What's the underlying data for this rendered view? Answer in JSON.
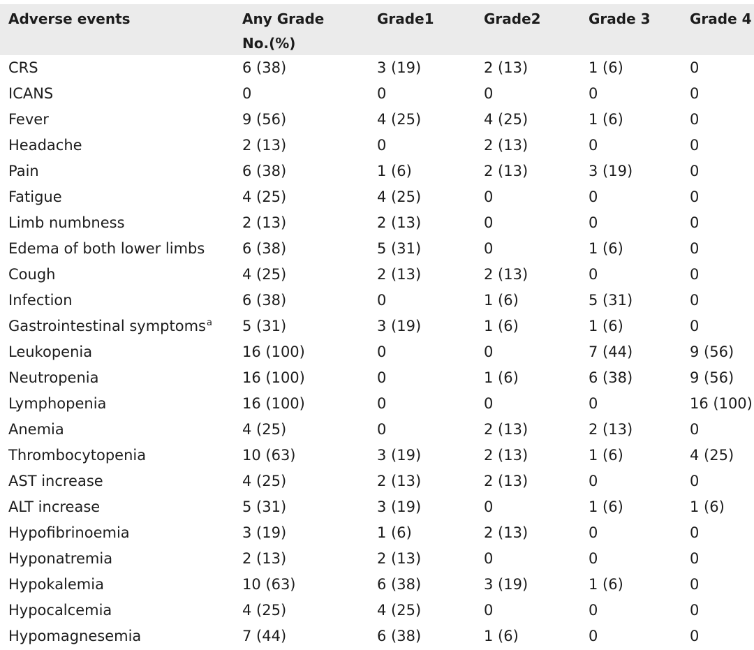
{
  "table": {
    "headers": [
      {
        "lines": [
          "Adverse events"
        ]
      },
      {
        "lines": [
          "Any Grade",
          "No.(%)"
        ]
      },
      {
        "lines": [
          "Grade1"
        ]
      },
      {
        "lines": [
          "Grade2"
        ]
      },
      {
        "lines": [
          "Grade 3"
        ]
      },
      {
        "lines": [
          "Grade 4"
        ]
      }
    ],
    "rows": [
      {
        "event": "CRS",
        "cells": [
          "6 (38)",
          "3 (19)",
          "2 (13)",
          "1 (6)",
          "0"
        ]
      },
      {
        "event": "ICANS",
        "cells": [
          "0",
          "0",
          "0",
          "0",
          "0"
        ]
      },
      {
        "event": "Fever",
        "cells": [
          "9 (56)",
          "4 (25)",
          "4 (25)",
          "1 (6)",
          "0"
        ]
      },
      {
        "event": "Headache",
        "cells": [
          "2 (13)",
          "0",
          "2 (13)",
          "0",
          "0"
        ]
      },
      {
        "event": "Pain",
        "cells": [
          "6 (38)",
          "1 (6)",
          "2 (13)",
          "3 (19)",
          "0"
        ]
      },
      {
        "event": "Fatigue",
        "cells": [
          "4 (25)",
          "4 (25)",
          "0",
          "0",
          "0"
        ]
      },
      {
        "event": "Limb numbness",
        "cells": [
          "2 (13)",
          "2 (13)",
          "0",
          "0",
          "0"
        ]
      },
      {
        "event": "Edema of both lower limbs",
        "cells": [
          "6 (38)",
          "5 (31)",
          "0",
          "1 (6)",
          "0"
        ]
      },
      {
        "event": "Cough",
        "cells": [
          "4 (25)",
          "2 (13)",
          "2 (13)",
          "0",
          "0"
        ]
      },
      {
        "event": "Infection",
        "cells": [
          "6 (38)",
          "0",
          "1 (6)",
          "5 (31)",
          "0"
        ]
      },
      {
        "event": "Gastrointestinal symptoms",
        "footnote": "a",
        "cells": [
          "5 (31)",
          "3 (19)",
          "1 (6)",
          "1 (6)",
          "0"
        ]
      },
      {
        "event": "Leukopenia",
        "cells": [
          "16 (100)",
          "0",
          "0",
          "7 (44)",
          "9 (56)"
        ]
      },
      {
        "event": "Neutropenia",
        "cells": [
          "16 (100)",
          "0",
          "1 (6)",
          "6 (38)",
          "9 (56)"
        ]
      },
      {
        "event": "Lymphopenia",
        "cells": [
          "16 (100)",
          "0",
          "0",
          "0",
          "16 (100)"
        ]
      },
      {
        "event": "Anemia",
        "cells": [
          "4 (25)",
          "0",
          "2 (13)",
          "2 (13)",
          "0"
        ]
      },
      {
        "event": "Thrombocytopenia",
        "cells": [
          "10 (63)",
          "3 (19)",
          "2 (13)",
          "1 (6)",
          "4 (25)"
        ]
      },
      {
        "event": "AST increase",
        "cells": [
          "4 (25)",
          "2 (13)",
          "2 (13)",
          "0",
          "0"
        ]
      },
      {
        "event": "ALT increase",
        "cells": [
          "5 (31)",
          "3 (19)",
          "0",
          "1 (6)",
          "1 (6)"
        ]
      },
      {
        "event": "Hypofibrinoemia",
        "cells": [
          "3 (19)",
          "1 (6)",
          "2 (13)",
          "0",
          "0"
        ]
      },
      {
        "event": "Hyponatremia",
        "cells": [
          "2 (13)",
          "2 (13)",
          "0",
          "0",
          "0"
        ]
      },
      {
        "event": "Hypokalemia",
        "cells": [
          "10 (63)",
          "6 (38)",
          "3 (19)",
          "1 (6)",
          "0"
        ]
      },
      {
        "event": "Hypocalcemia",
        "cells": [
          "4 (25)",
          "4 (25)",
          "0",
          "0",
          "0"
        ]
      },
      {
        "event": "Hypomagnesemia",
        "cells": [
          "7 (44)",
          "6 (38)",
          "1 (6)",
          "0",
          "0"
        ]
      }
    ]
  }
}
